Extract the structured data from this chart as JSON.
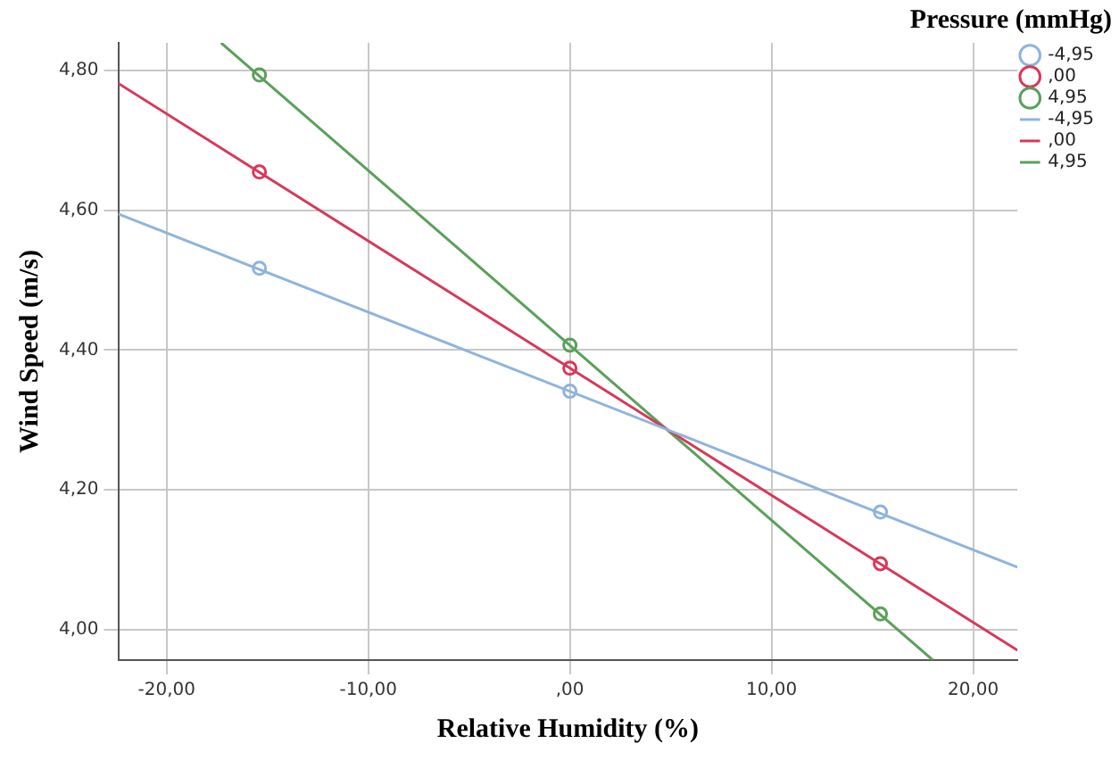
{
  "chart_data": {
    "type": "scatter",
    "xlabel": "Relative Humidity (%)",
    "ylabel": "Wind Speed (m/s)",
    "legend_title": "Pressure (mmHg)",
    "legend": "top right",
    "grid": true,
    "xlim": [
      -22.4,
      22.2
    ],
    "ylim": [
      3.956,
      4.84
    ],
    "xticks": [
      {
        "value": -20,
        "label": "-20,00"
      },
      {
        "value": -10,
        "label": "-10,00"
      },
      {
        "value": 0,
        "label": ",00"
      },
      {
        "value": 10,
        "label": "10,00"
      },
      {
        "value": 20,
        "label": "20,00"
      }
    ],
    "yticks": [
      {
        "value": 4.0,
        "label": "4,00"
      },
      {
        "value": 4.2,
        "label": "4,20"
      },
      {
        "value": 4.4,
        "label": "4,40"
      },
      {
        "value": 4.6,
        "label": "4,60"
      },
      {
        "value": 4.8,
        "label": "4,80"
      }
    ],
    "series": [
      {
        "name": "-4,95",
        "type": "scatter",
        "marker": "circle",
        "color": "#8fb4dc",
        "x": [
          -15.4,
          0,
          15.4
        ],
        "values": [
          4.517,
          4.341,
          4.168
        ]
      },
      {
        "name": ",00",
        "type": "scatter",
        "marker": "circle",
        "color": "#d6395a",
        "x": [
          -15.4,
          0,
          15.4
        ],
        "values": [
          4.655,
          4.374,
          4.094
        ]
      },
      {
        "name": "4,95",
        "type": "scatter",
        "marker": "circle",
        "color": "#5aa05a",
        "x": [
          -15.4,
          0,
          15.4
        ],
        "values": [
          4.794,
          4.407,
          4.022
        ]
      },
      {
        "name": "-4,95",
        "type": "line",
        "marker": "none",
        "line_style": "solid",
        "color": "#8fb4dc",
        "x": [
          -22.4,
          22.2
        ],
        "values": [
          4.595,
          4.089
        ]
      },
      {
        "name": ",00",
        "type": "line",
        "marker": "none",
        "line_style": "solid",
        "color": "#d6395a",
        "x": [
          -22.4,
          22.2
        ],
        "values": [
          4.782,
          3.97
        ]
      },
      {
        "name": "4,95",
        "type": "line",
        "marker": "none",
        "line_style": "solid",
        "color": "#5aa05a",
        "x": [
          -17.3,
          18.0
        ],
        "values": [
          4.84,
          3.956
        ]
      }
    ]
  }
}
